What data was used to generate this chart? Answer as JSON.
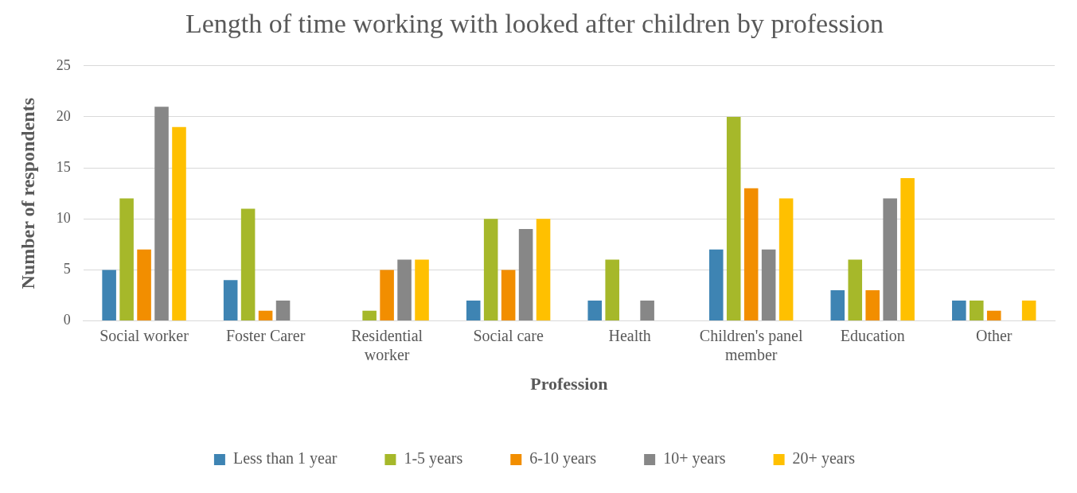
{
  "chart_data": {
    "type": "bar",
    "title": "Length of time working with looked after children by profession",
    "xlabel": "Profession",
    "ylabel": "Number of respondents",
    "categories": [
      "Social worker",
      "Foster Carer",
      "Residential worker",
      "Social care",
      "Health",
      "Children's panel member",
      "Education",
      "Other"
    ],
    "series": [
      {
        "name": "Less than 1 year",
        "color": "#3e84b3",
        "values": [
          5,
          4,
          0,
          2,
          2,
          7,
          3,
          2
        ]
      },
      {
        "name": "1-5 years",
        "color": "#a6b82a",
        "values": [
          12,
          11,
          1,
          10,
          6,
          20,
          6,
          2
        ]
      },
      {
        "name": "6-10 years",
        "color": "#f28e00",
        "values": [
          7,
          1,
          5,
          5,
          0,
          13,
          3,
          1
        ]
      },
      {
        "name": "10+ years",
        "color": "#878787",
        "values": [
          21,
          2,
          6,
          9,
          2,
          7,
          12,
          0
        ]
      },
      {
        "name": "20+ years",
        "color": "#ffc000",
        "values": [
          19,
          0,
          6,
          10,
          0,
          12,
          14,
          2
        ]
      }
    ],
    "ylim": [
      0,
      25
    ],
    "yticks": [
      0,
      5,
      10,
      15,
      20,
      25
    ],
    "grid": "y",
    "legend": "bottom"
  }
}
